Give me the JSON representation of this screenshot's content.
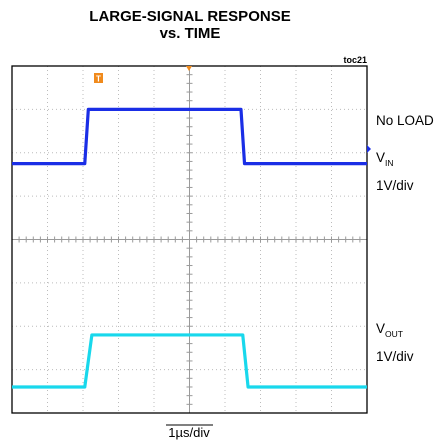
{
  "chart_data": {
    "type": "line",
    "title_line1": "LARGE-SIGNAL RESPONSE",
    "title_line2": "vs. TIME",
    "figure_tag": "toc21",
    "x_axis_label": "1µs/div",
    "x": [
      0,
      2.2,
      2.3,
      6.5,
      6.6,
      10
    ],
    "xlim": [
      0,
      10
    ],
    "ylim": [
      -4,
      4
    ],
    "grid": true,
    "series": [
      {
        "key": "vin",
        "x": [
          0,
          2.05,
          2.15,
          6.45,
          6.55,
          10
        ],
        "y": [
          1.75,
          1.75,
          3.0,
          3.0,
          1.75,
          1.75
        ],
        "color": "#1a2ee6",
        "labels": [
          "No LOAD",
          "V",
          "IN",
          "1V/div"
        ]
      },
      {
        "key": "vout",
        "x": [
          0,
          2.05,
          2.25,
          6.5,
          6.65,
          10
        ],
        "y": [
          -3.4,
          -3.4,
          -2.2,
          -2.2,
          -3.4,
          -3.4
        ],
        "color": "#18d8ec",
        "labels": [
          "V",
          "OUT",
          "1V/div"
        ]
      }
    ],
    "trigger_marker": "T",
    "trigger_color": "#f08a1c"
  }
}
